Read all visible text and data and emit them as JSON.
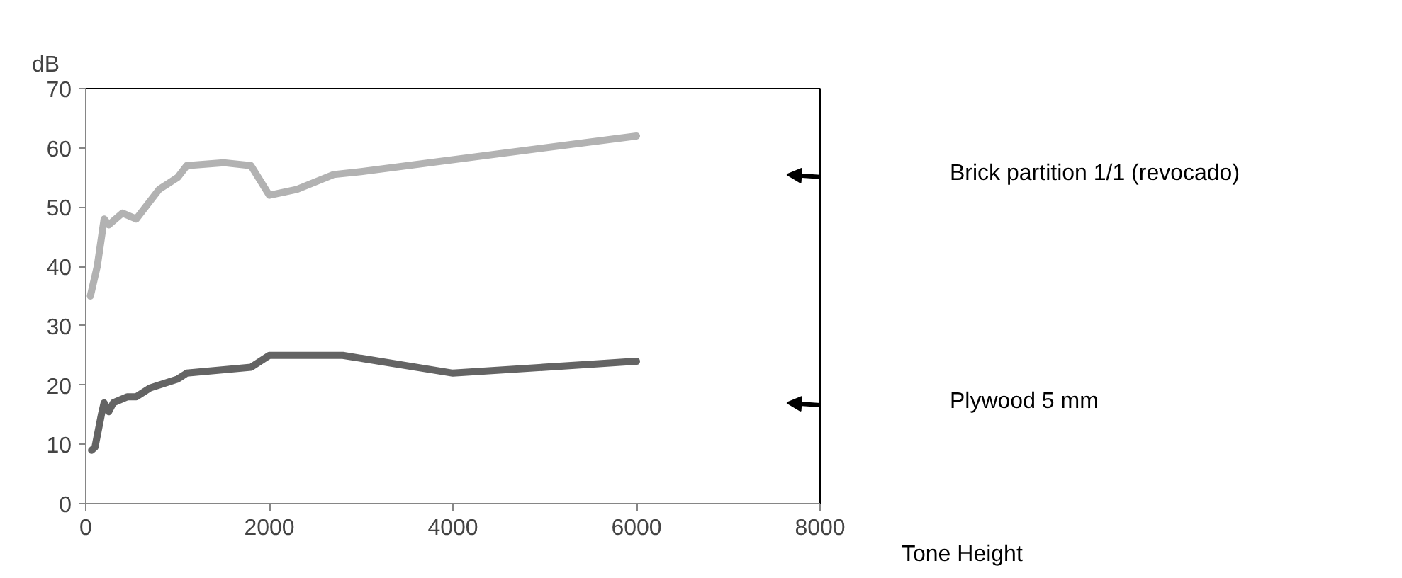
{
  "chart_data": {
    "type": "line",
    "xlabel": "Tone Height",
    "ylabel": "dB",
    "xlim": [
      0,
      8000
    ],
    "ylim": [
      0,
      70
    ],
    "xticks": [
      0,
      2000,
      4000,
      6000,
      8000
    ],
    "yticks": [
      0,
      10,
      20,
      30,
      40,
      50,
      60,
      70
    ],
    "grid": false,
    "marker": "none",
    "line_style": "solid",
    "series": [
      {
        "name": "Brick partition 1/1 (revocado)",
        "color": "#b2b2b2",
        "x": [
          50,
          125,
          200,
          250,
          400,
          550,
          800,
          1000,
          1100,
          1500,
          1800,
          2000,
          2300,
          2700,
          3000,
          6000
        ],
        "values": [
          35,
          40,
          48,
          47,
          49,
          48,
          53,
          55,
          57,
          57.5,
          57,
          52,
          53,
          55.5,
          56,
          62
        ]
      },
      {
        "name": "Plywood 5 mm",
        "color": "#646464",
        "x": [
          63,
          100,
          170,
          200,
          250,
          300,
          450,
          550,
          700,
          1000,
          1100,
          1800,
          2000,
          2500,
          2800,
          4000,
          6000
        ],
        "values": [
          9,
          9.5,
          15,
          17,
          15.5,
          17,
          18,
          18,
          19.5,
          21,
          22,
          23,
          25,
          25,
          25,
          22,
          24
        ]
      }
    ]
  }
}
